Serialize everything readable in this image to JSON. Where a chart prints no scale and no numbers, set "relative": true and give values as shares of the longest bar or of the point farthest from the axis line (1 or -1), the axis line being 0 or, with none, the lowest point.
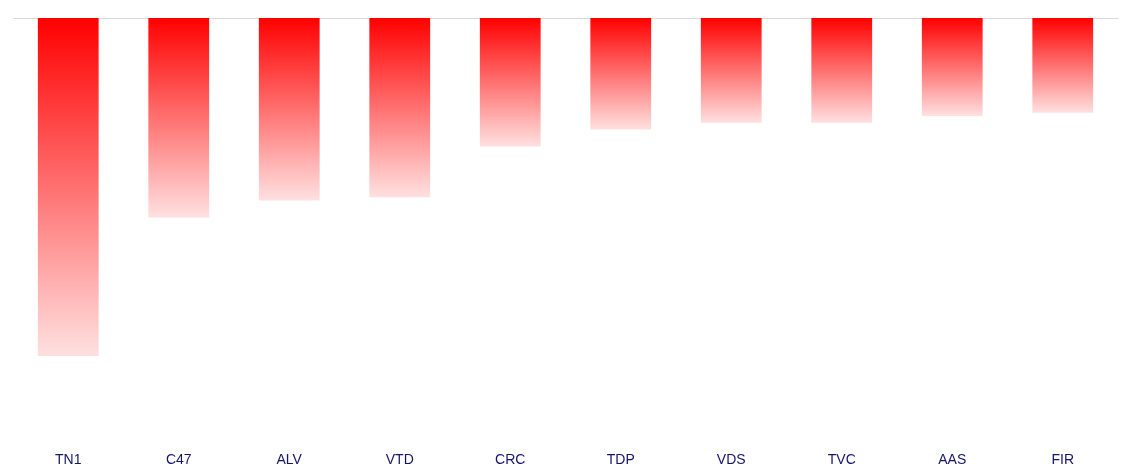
{
  "chart_data": {
    "type": "bar",
    "relative": true,
    "tick_labels": "x",
    "categories": [
      "TN1",
      "C47",
      "ALV",
      "VTD",
      "CRC",
      "TDP",
      "VDS",
      "TVC",
      "AAS",
      "FIR"
    ],
    "values": [
      -1,
      -0.59,
      -0.54,
      -0.53,
      -0.38,
      -0.33,
      -0.31,
      -0.31,
      -0.29,
      -0.28
    ],
    "color": "#ff0000"
  }
}
